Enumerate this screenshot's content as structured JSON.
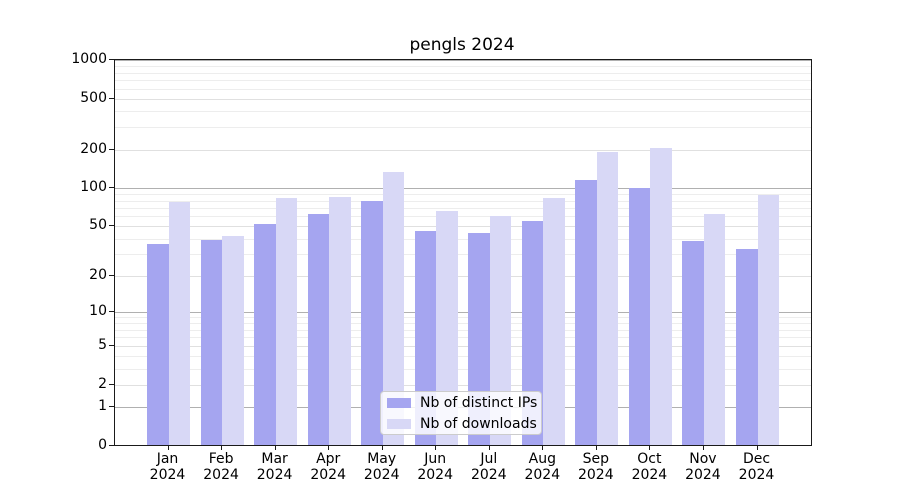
{
  "title": "pengls 2024",
  "chart_data": {
    "type": "bar",
    "title": "pengls 2024",
    "categories": [
      "Jan",
      "Feb",
      "Mar",
      "Apr",
      "May",
      "Jun",
      "Jul",
      "Aug",
      "Sep",
      "Oct",
      "Nov",
      "Dec"
    ],
    "year": "2024",
    "series": [
      {
        "name": "Nb of distinct IPs",
        "color": "#a5a5f0",
        "values": [
          36,
          39,
          52,
          63,
          79,
          46,
          44,
          55,
          117,
          100,
          38,
          33
        ]
      },
      {
        "name": "Nb of downloads",
        "color": "#d8d8f6",
        "values": [
          78,
          42,
          83,
          86,
          135,
          66,
          60,
          83,
          193,
          205,
          63,
          88
        ]
      }
    ],
    "y_axis": {
      "scale": "log10(1+value)",
      "ticks": [
        0,
        1,
        2,
        5,
        10,
        20,
        50,
        100,
        200,
        500,
        1000
      ],
      "tick_labels": [
        "0",
        "1",
        "2",
        "5",
        "10",
        "20",
        "50",
        "100",
        "200",
        "500",
        "1000"
      ],
      "major_gridlines": [
        1,
        10,
        100,
        1000
      ],
      "mid_gridlines": [
        2,
        5,
        20,
        50,
        200,
        500
      ],
      "minor_gridlines": [
        3,
        4,
        6,
        7,
        8,
        9,
        30,
        40,
        60,
        70,
        80,
        90,
        300,
        400,
        600,
        700,
        800,
        900
      ]
    },
    "xlabel": "",
    "ylabel": "",
    "grid": true,
    "legend_position": "bottom-center"
  },
  "legend": {
    "items": [
      "Nb of distinct IPs",
      "Nb of downloads"
    ]
  }
}
